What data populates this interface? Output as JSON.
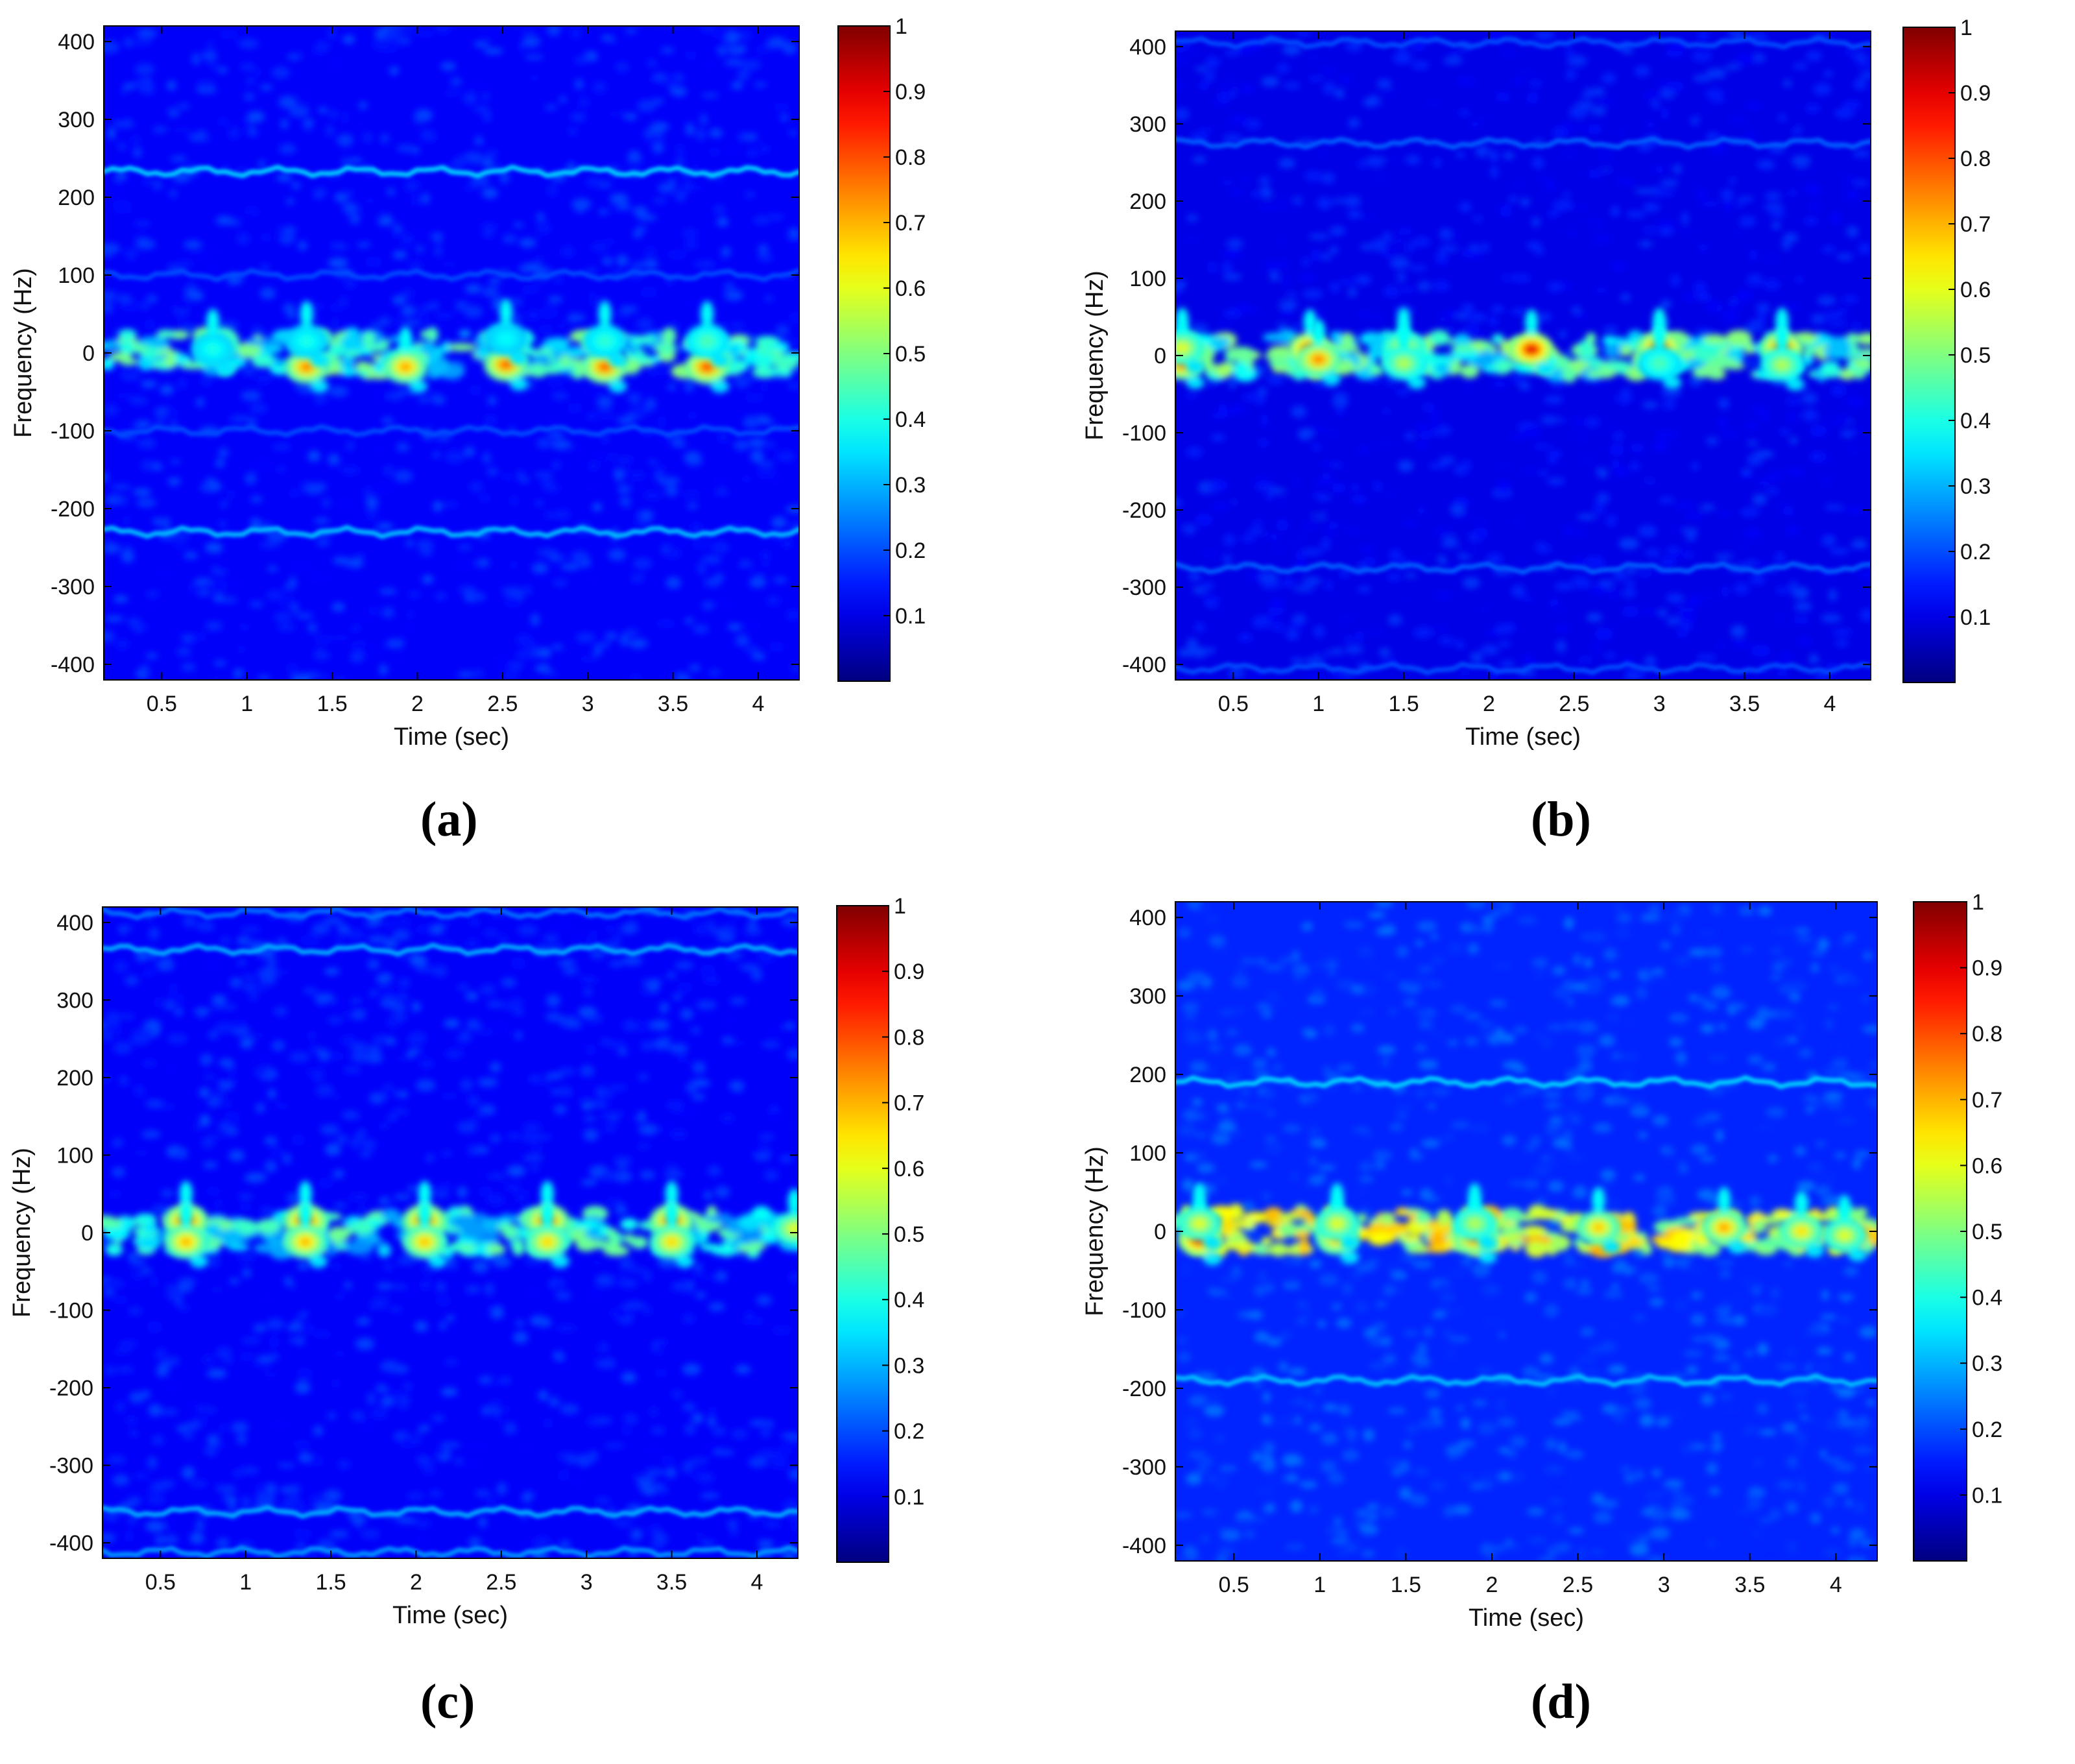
{
  "chart_data": [
    {
      "type": "heatmap",
      "panel_label": "(a)",
      "xlabel": "Time (sec)",
      "ylabel": "Frequency (Hz)",
      "xlim": [
        0.16,
        4.24
      ],
      "ylim": [
        -420,
        420
      ],
      "xticks": [
        0.5,
        1,
        1.5,
        2,
        2.5,
        3,
        3.5,
        4
      ],
      "xtick_labels": [
        "0.5",
        "1",
        "1.5",
        "2",
        "2.5",
        "3",
        "3.5",
        "4"
      ],
      "yticks": [
        400,
        300,
        200,
        100,
        0,
        -100,
        -200,
        -300,
        -400
      ],
      "ytick_labels": [
        "400",
        "300",
        "200",
        "100",
        "0",
        "-100",
        "-200",
        "-300",
        "-400"
      ],
      "colorbar": {
        "range": [
          0,
          1
        ],
        "ticks": [
          1,
          0.9,
          0.8,
          0.7,
          0.6,
          0.5,
          0.4,
          0.3,
          0.2,
          0.1
        ],
        "tick_labels": [
          "1",
          "0.9",
          "0.8",
          "0.7",
          "0.6",
          "0.5",
          "0.4",
          "0.3",
          "0.2",
          "0.1"
        ]
      },
      "colormap": "jet",
      "noise_level": 0.12,
      "bands": [
        {
          "freq": 233,
          "intensity": 0.34,
          "t_start": 0.16,
          "t_end": 4.24
        },
        {
          "freq": -230,
          "intensity": 0.32,
          "t_start": 0.16,
          "t_end": 4.24
        },
        {
          "freq": 100,
          "intensity": 0.2,
          "t_start": 0.16,
          "t_end": 4.24
        },
        {
          "freq": -100,
          "intensity": 0.2,
          "t_start": 0.16,
          "t_end": 4.24
        }
      ],
      "center_band": {
        "freq": 0,
        "intensity": 0.26
      },
      "hotspots": [
        {
          "t": 0.8,
          "f": 5,
          "v": 0.4
        },
        {
          "t": 1.35,
          "f": -18,
          "v": 0.75
        },
        {
          "t": 1.35,
          "f": 15,
          "v": 0.4
        },
        {
          "t": 1.93,
          "f": -18,
          "v": 0.72
        },
        {
          "t": 2.52,
          "f": -15,
          "v": 0.78
        },
        {
          "t": 2.52,
          "f": 18,
          "v": 0.38
        },
        {
          "t": 3.1,
          "f": -18,
          "v": 0.78
        },
        {
          "t": 3.1,
          "f": 15,
          "v": 0.42
        },
        {
          "t": 3.7,
          "f": -18,
          "v": 0.8
        },
        {
          "t": 3.7,
          "f": 15,
          "v": 0.45
        }
      ]
    },
    {
      "type": "heatmap",
      "panel_label": "(b)",
      "xlabel": "Time (sec)",
      "ylabel": "Frequency (Hz)",
      "xlim": [
        0.16,
        4.24
      ],
      "ylim": [
        -420,
        420
      ],
      "xticks": [
        0.5,
        1,
        1.5,
        2,
        2.5,
        3,
        3.5,
        4
      ],
      "xtick_labels": [
        "0.5",
        "1",
        "1.5",
        "2",
        "2.5",
        "3",
        "3.5",
        "4"
      ],
      "yticks": [
        400,
        300,
        200,
        100,
        0,
        -100,
        -200,
        -300,
        -400
      ],
      "ytick_labels": [
        "400",
        "300",
        "200",
        "100",
        "0",
        "-100",
        "-200",
        "-300",
        "-400"
      ],
      "colorbar": {
        "range": [
          0,
          1
        ],
        "ticks": [
          1,
          0.9,
          0.8,
          0.7,
          0.6,
          0.5,
          0.4,
          0.3,
          0.2,
          0.1
        ],
        "tick_labels": [
          "1",
          "0.9",
          "0.8",
          "0.7",
          "0.6",
          "0.5",
          "0.4",
          "0.3",
          "0.2",
          "0.1"
        ]
      },
      "colormap": "jet",
      "noise_level": 0.1,
      "bands": [
        {
          "freq": 405,
          "intensity": 0.2,
          "t_start": 0.16,
          "t_end": 4.24
        },
        {
          "freq": 275,
          "intensity": 0.22,
          "t_start": 0.16,
          "t_end": 4.24
        },
        {
          "freq": -275,
          "intensity": 0.22,
          "t_start": 0.16,
          "t_end": 4.24
        },
        {
          "freq": -405,
          "intensity": 0.2,
          "t_start": 0.16,
          "t_end": 4.24
        }
      ],
      "center_band": {
        "freq": 0,
        "intensity": 0.28
      },
      "hotspots": [
        {
          "t": 0.2,
          "f": -10,
          "v": 0.78
        },
        {
          "t": 0.2,
          "f": 10,
          "v": 0.6
        },
        {
          "t": 0.95,
          "f": 8,
          "v": 0.85
        },
        {
          "t": 1.0,
          "f": -5,
          "v": 0.75
        },
        {
          "t": 1.5,
          "f": 10,
          "v": 0.6
        },
        {
          "t": 1.5,
          "f": -10,
          "v": 0.55
        },
        {
          "t": 2.25,
          "f": 8,
          "v": 0.9
        },
        {
          "t": 3.0,
          "f": 10,
          "v": 0.85
        },
        {
          "t": 3.0,
          "f": -10,
          "v": 0.45
        },
        {
          "t": 3.72,
          "f": 10,
          "v": 0.82
        },
        {
          "t": 3.72,
          "f": -12,
          "v": 0.55
        }
      ]
    },
    {
      "type": "heatmap",
      "panel_label": "(c)",
      "xlabel": "Time (sec)",
      "ylabel": "Frequency (Hz)",
      "xlim": [
        0.16,
        4.24
      ],
      "ylim": [
        -420,
        420
      ],
      "xticks": [
        0.5,
        1,
        1.5,
        2,
        2.5,
        3,
        3.5,
        4
      ],
      "xtick_labels": [
        "0.5",
        "1",
        "1.5",
        "2",
        "2.5",
        "3",
        "3.5",
        "4"
      ],
      "yticks": [
        400,
        300,
        200,
        100,
        0,
        -100,
        -200,
        -300,
        -400
      ],
      "ytick_labels": [
        "400",
        "300",
        "200",
        "100",
        "0",
        "-100",
        "-200",
        "-300",
        "-400"
      ],
      "colorbar": {
        "range": [
          0,
          1
        ],
        "ticks": [
          1,
          0.9,
          0.8,
          0.7,
          0.6,
          0.5,
          0.4,
          0.3,
          0.2,
          0.1
        ],
        "tick_labels": [
          "1",
          "0.9",
          "0.8",
          "0.7",
          "0.6",
          "0.5",
          "0.4",
          "0.3",
          "0.2",
          "0.1"
        ]
      },
      "colormap": "jet",
      "noise_level": 0.12,
      "bands": [
        {
          "freq": 365,
          "intensity": 0.3,
          "t_start": 0.16,
          "t_end": 4.24
        },
        {
          "freq": -360,
          "intensity": 0.3,
          "t_start": 0.16,
          "t_end": 4.24
        },
        {
          "freq": 412,
          "intensity": 0.24,
          "t_start": 0.16,
          "t_end": 4.24
        },
        {
          "freq": -412,
          "intensity": 0.28,
          "t_start": 0.16,
          "t_end": 4.24
        }
      ],
      "center_band": {
        "freq": 0,
        "intensity": 0.24
      },
      "hotspots": [
        {
          "t": 0.65,
          "f": 15,
          "v": 0.82
        },
        {
          "t": 0.65,
          "f": -12,
          "v": 0.7
        },
        {
          "t": 1.35,
          "f": 15,
          "v": 0.82
        },
        {
          "t": 1.35,
          "f": -12,
          "v": 0.7
        },
        {
          "t": 2.05,
          "f": 15,
          "v": 0.8
        },
        {
          "t": 2.05,
          "f": -12,
          "v": 0.68
        },
        {
          "t": 2.77,
          "f": 15,
          "v": 0.8
        },
        {
          "t": 2.77,
          "f": -12,
          "v": 0.66
        },
        {
          "t": 3.5,
          "f": 15,
          "v": 0.8
        },
        {
          "t": 3.5,
          "f": -12,
          "v": 0.66
        },
        {
          "t": 4.22,
          "f": 5,
          "v": 0.6
        }
      ]
    },
    {
      "type": "heatmap",
      "panel_label": "(d)",
      "xlabel": "Time (sec)",
      "ylabel": "Frequency (Hz)",
      "xlim": [
        0.16,
        4.24
      ],
      "ylim": [
        -420,
        420
      ],
      "xticks": [
        0.5,
        1,
        1.5,
        2,
        2.5,
        3,
        3.5,
        4
      ],
      "xtick_labels": [
        "0.5",
        "1",
        "1.5",
        "2",
        "2.5",
        "3",
        "3.5",
        "4"
      ],
      "yticks": [
        400,
        300,
        200,
        100,
        0,
        -100,
        -200,
        -300,
        -400
      ],
      "ytick_labels": [
        "400",
        "300",
        "200",
        "100",
        "0",
        "-100",
        "-200",
        "-300",
        "-400"
      ],
      "colorbar": {
        "range": [
          0,
          1
        ],
        "ticks": [
          1,
          0.9,
          0.8,
          0.7,
          0.6,
          0.5,
          0.4,
          0.3,
          0.2,
          0.1
        ],
        "tick_labels": [
          "1",
          "0.9",
          "0.8",
          "0.7",
          "0.6",
          "0.5",
          "0.4",
          "0.3",
          "0.2",
          "0.1"
        ]
      },
      "colormap": "jet",
      "noise_level": 0.16,
      "bands": [
        {
          "freq": 190,
          "intensity": 0.34,
          "t_start": 0.16,
          "t_end": 4.24
        },
        {
          "freq": -190,
          "intensity": 0.32,
          "t_start": 0.16,
          "t_end": 4.24
        }
      ],
      "center_band": {
        "freq": 0,
        "intensity": 0.45
      },
      "hotspots": [
        {
          "t": 0.3,
          "f": -10,
          "v": 0.88
        },
        {
          "t": 0.3,
          "f": 10,
          "v": 0.6
        },
        {
          "t": 1.1,
          "f": -8,
          "v": 0.72
        },
        {
          "t": 1.1,
          "f": 10,
          "v": 0.6
        },
        {
          "t": 1.9,
          "f": -8,
          "v": 0.78
        },
        {
          "t": 1.9,
          "f": 10,
          "v": 0.55
        },
        {
          "t": 2.62,
          "f": 5,
          "v": 0.68
        },
        {
          "t": 3.35,
          "f": 5,
          "v": 0.72
        },
        {
          "t": 3.8,
          "f": 0,
          "v": 0.65
        },
        {
          "t": 4.05,
          "f": -5,
          "v": 0.6
        }
      ]
    }
  ]
}
